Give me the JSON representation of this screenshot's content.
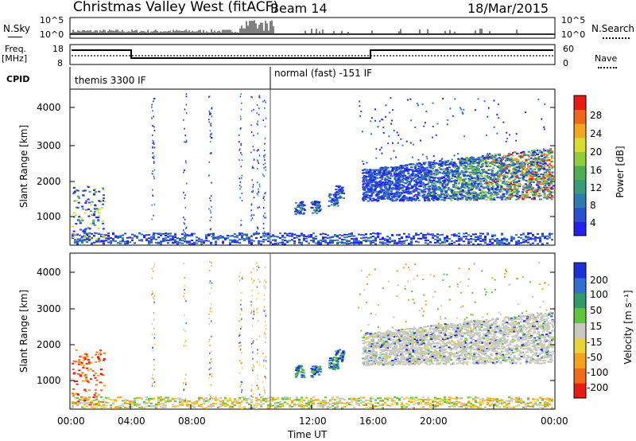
{
  "header": {
    "station": "Christmas Valley West (fitACF)",
    "beam": "Beam 14",
    "date": "18/Mar/2015"
  },
  "top_panels": {
    "nsky_label": "N.Sky",
    "nsky_ticks": [
      "10^5",
      "10^0"
    ],
    "nsearch_label": "N.Search",
    "nsearch_ticks": [
      "10^5",
      "10^0"
    ],
    "freq_label": "Freq.",
    "freq_unit": "[MHz]",
    "freq_ticks": [
      "18",
      "8"
    ],
    "nave_label": "Nave",
    "nave_ticks": [
      "60",
      "0"
    ],
    "cpid_label": "CPID",
    "cpid_segments": [
      "themis 3300 IF",
      "normal (fast) -151 IF"
    ]
  },
  "power_panel": {
    "ylabel": "Slant Range [km]",
    "yticks": [
      "4000",
      "3000",
      "2000",
      "1000"
    ],
    "colorbar_label": "Power [dB]",
    "colorbar_ticks": [
      "28",
      "24",
      "20",
      "16",
      "12",
      "8",
      "4"
    ],
    "colors": [
      "#2222ee",
      "#2a4fcf",
      "#2f7ab0",
      "#3a9b7a",
      "#4fae55",
      "#8fce3a",
      "#d8dc2e",
      "#f5a51c",
      "#f0671a",
      "#e81c12"
    ]
  },
  "velocity_panel": {
    "ylabel": "Slant Range [km]",
    "yticks": [
      "4000",
      "3000",
      "2000",
      "1000"
    ],
    "colorbar_label": "Velocity [m s⁻¹]",
    "colorbar_ticks": [
      "200",
      "100",
      "50",
      "15",
      "-15",
      "-50",
      "-100",
      "-200"
    ],
    "colors": [
      "#1c2fd8",
      "#2f6fcf",
      "#2f9a6a",
      "#5fc63a",
      "#c8c8c0",
      "#e8d33a",
      "#f5a21c",
      "#f06a1a",
      "#e81c12"
    ]
  },
  "time_axis": {
    "label": "Time UT",
    "ticks": [
      "00:00",
      "04:00",
      "08:00",
      "12:00",
      "16:00",
      "20:00",
      "00:00"
    ]
  }
}
